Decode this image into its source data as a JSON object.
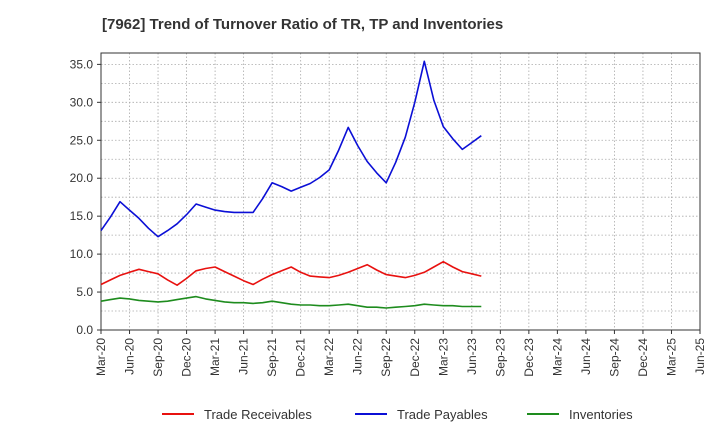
{
  "chart_data": {
    "type": "line",
    "title": "[7962]  Trend of Turnover Ratio of TR, TP and Inventories",
    "xlabel": "",
    "ylabel": "",
    "ylim": [
      0,
      36.5
    ],
    "yticks": [
      "0.0",
      "5.0",
      "10.0",
      "15.0",
      "20.0",
      "25.0",
      "30.0",
      "35.0"
    ],
    "ytick_values": [
      0,
      5,
      10,
      15,
      20,
      25,
      30,
      35
    ],
    "xtick_labels": [
      "Mar-20",
      "Jun-20",
      "Sep-20",
      "Dec-20",
      "Mar-21",
      "Jun-21",
      "Sep-21",
      "Dec-21",
      "Mar-22",
      "Jun-22",
      "Sep-22",
      "Dec-22",
      "Mar-23",
      "Jun-23",
      "Sep-23",
      "Dec-23",
      "Mar-24",
      "Jun-24",
      "Sep-24",
      "Dec-24",
      "Mar-25",
      "Jun-25"
    ],
    "grid": true,
    "legend_position": "bottom",
    "series": [
      {
        "name": "Trade Receivables",
        "color": "#e8110f",
        "values": [
          6.0,
          6.6,
          7.2,
          7.6,
          8.0,
          7.7,
          7.4,
          6.6,
          5.9,
          6.8,
          7.8,
          8.1,
          8.3,
          7.7,
          7.1,
          6.5,
          6.0,
          6.7,
          7.3,
          7.8,
          8.3,
          7.6,
          7.1,
          7.0,
          6.9,
          7.2,
          7.6,
          8.1,
          8.6,
          7.9,
          7.3,
          7.1,
          6.9,
          7.2,
          7.6,
          8.3,
          9.0,
          8.3,
          7.7,
          7.4,
          7.1
        ]
      },
      {
        "name": "Trade Payables",
        "color": "#0b0fd6",
        "values": [
          13.1,
          14.9,
          16.9,
          15.8,
          14.7,
          13.4,
          12.3,
          13.1,
          14.0,
          15.2,
          16.6,
          16.2,
          15.8,
          15.6,
          15.5,
          15.5,
          15.5,
          17.3,
          19.4,
          18.9,
          18.3,
          18.8,
          19.3,
          20.1,
          21.1,
          23.7,
          26.7,
          24.3,
          22.2,
          20.7,
          19.4,
          22.1,
          25.4,
          30.0,
          35.4,
          30.3,
          26.8,
          25.2,
          23.8,
          24.7,
          25.6
        ]
      },
      {
        "name": "Inventories",
        "color": "#1e8c1e",
        "values": [
          3.8,
          4.0,
          4.2,
          4.1,
          3.9,
          3.8,
          3.7,
          3.8,
          4.0,
          4.2,
          4.4,
          4.1,
          3.9,
          3.7,
          3.6,
          3.6,
          3.5,
          3.6,
          3.8,
          3.6,
          3.4,
          3.3,
          3.3,
          3.2,
          3.2,
          3.3,
          3.4,
          3.2,
          3.0,
          3.0,
          2.9,
          3.0,
          3.1,
          3.2,
          3.4,
          3.3,
          3.2,
          3.2,
          3.1,
          3.1,
          3.1
        ]
      }
    ]
  }
}
